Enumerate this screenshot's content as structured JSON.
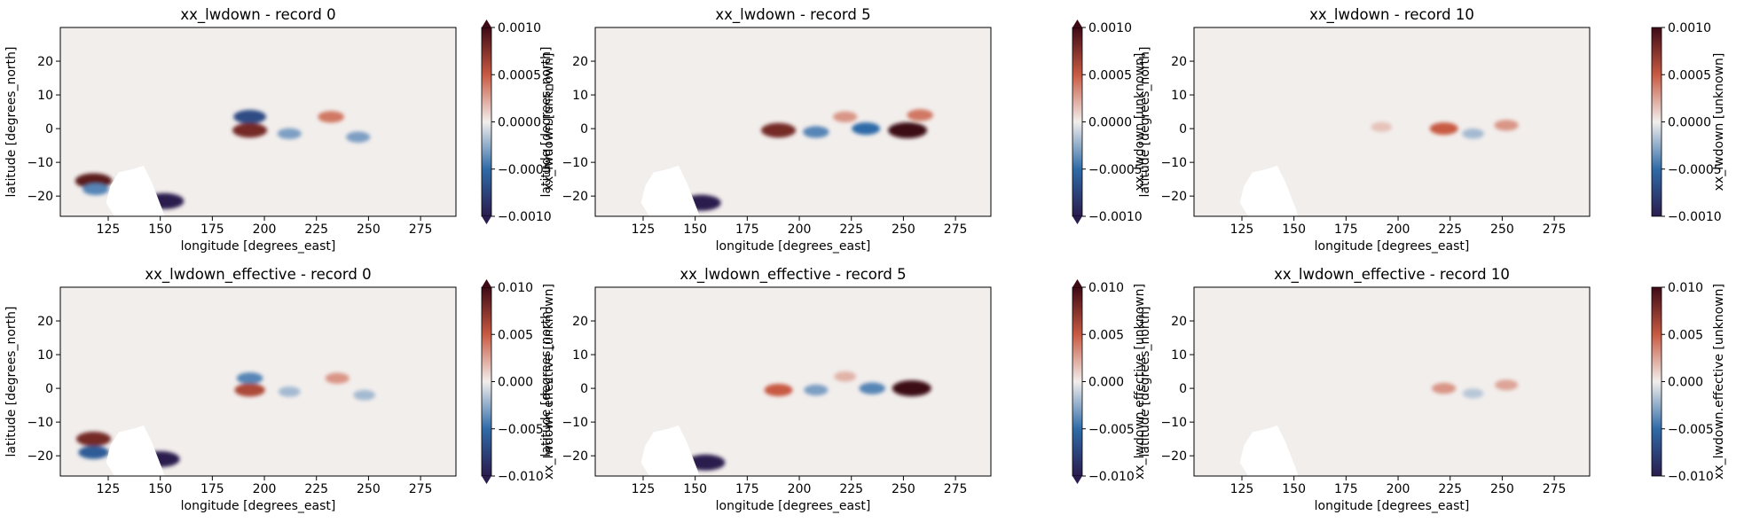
{
  "chart_data": [
    {
      "type": "heatmap",
      "title": "xx_lwdown - record 0",
      "xlabel": "longitude [degrees_east]",
      "ylabel": "latitude [degrees_north]",
      "xlim": [
        102,
        292
      ],
      "ylim": [
        -26,
        30
      ],
      "xticks": [
        125,
        150,
        175,
        200,
        225,
        250,
        275
      ],
      "yticks": [
        -20,
        -10,
        0,
        10,
        20
      ],
      "colorbar": {
        "label": "xx_lwdown [unknown]",
        "range": [
          -0.001,
          0.001
        ],
        "ticks": [
          "0.0010",
          "0.0005",
          "0.0000",
          "−0.0005",
          "−0.0010"
        ],
        "extend": "both"
      },
      "cmap": "balance",
      "features": [
        {
          "lon": 193,
          "lat": 3.5,
          "value": -0.0007
        },
        {
          "lon": 193,
          "lat": -0.5,
          "value": 0.0008
        },
        {
          "lon": 212,
          "lat": -1.5,
          "value": -0.0003
        },
        {
          "lon": 232,
          "lat": 3.5,
          "value": 0.0004
        },
        {
          "lon": 245,
          "lat": -2.5,
          "value": -0.0003
        },
        {
          "lon": 118,
          "lat": -15.5,
          "value": 0.0009
        },
        {
          "lon": 119,
          "lat": -18,
          "value": -0.0004
        },
        {
          "lon": 152,
          "lat": -21.5,
          "value": -0.001
        }
      ]
    },
    {
      "type": "heatmap",
      "title": "xx_lwdown - record 5",
      "xlabel": "longitude [degrees_east]",
      "ylabel": "latitude [degrees_north]",
      "xlim": [
        102,
        292
      ],
      "ylim": [
        -26,
        30
      ],
      "xticks": [
        125,
        150,
        175,
        200,
        225,
        250,
        275
      ],
      "yticks": [
        -20,
        -10,
        0,
        10,
        20
      ],
      "colorbar": {
        "label": "xx_lwdown [unknown]",
        "range": [
          -0.001,
          0.001
        ],
        "ticks": [
          "0.0010",
          "0.0005",
          "0.0000",
          "−0.0005",
          "−0.0010"
        ],
        "extend": "both"
      },
      "cmap": "balance",
      "features": [
        {
          "lon": 190,
          "lat": -0.5,
          "value": 0.0008
        },
        {
          "lon": 208,
          "lat": -1,
          "value": -0.0004
        },
        {
          "lon": 222,
          "lat": 3.5,
          "value": 0.0003
        },
        {
          "lon": 232,
          "lat": 0,
          "value": -0.0005
        },
        {
          "lon": 252,
          "lat": -0.5,
          "value": 0.001
        },
        {
          "lon": 258,
          "lat": 4,
          "value": 0.0004
        },
        {
          "lon": 153,
          "lat": -22,
          "value": -0.001
        }
      ]
    },
    {
      "type": "heatmap",
      "title": "xx_lwdown - record 10",
      "xlabel": "longitude [degrees_east]",
      "ylabel": "latitude [degrees_north]",
      "xlim": [
        102,
        292
      ],
      "ylim": [
        -26,
        30
      ],
      "xticks": [
        125,
        150,
        175,
        200,
        225,
        250,
        275
      ],
      "yticks": [
        -20,
        -10,
        0,
        10,
        20
      ],
      "colorbar": {
        "label": "xx_lwdown [unknown]",
        "range": [
          -0.001,
          0.001
        ],
        "ticks": [
          "0.0010",
          "0.0005",
          "0.0000",
          "−0.0005",
          "−0.0010"
        ],
        "extend": "neither"
      },
      "cmap": "balance",
      "features": [
        {
          "lon": 222,
          "lat": 0,
          "value": 0.0005
        },
        {
          "lon": 252,
          "lat": 1,
          "value": 0.0003
        },
        {
          "lon": 192,
          "lat": 0.5,
          "value": 0.00015
        },
        {
          "lon": 236,
          "lat": -1.5,
          "value": -0.0002
        }
      ]
    },
    {
      "type": "heatmap",
      "title": "xx_lwdown_effective - record 0",
      "xlabel": "longitude [degrees_east]",
      "ylabel": "latitude [degrees_north]",
      "xlim": [
        102,
        292
      ],
      "ylim": [
        -26,
        30
      ],
      "xticks": [
        125,
        150,
        175,
        200,
        225,
        250,
        275
      ],
      "yticks": [
        -20,
        -10,
        0,
        10,
        20
      ],
      "colorbar": {
        "label": "xx_lwdown.effective [unknown]",
        "range": [
          -0.01,
          0.01
        ],
        "ticks": [
          "0.010",
          "0.005",
          "0.000",
          "−0.005",
          "−0.010"
        ],
        "extend": "both"
      },
      "cmap": "balance",
      "features": [
        {
          "lon": 193,
          "lat": 3,
          "value": -0.004
        },
        {
          "lon": 193,
          "lat": -0.5,
          "value": 0.006
        },
        {
          "lon": 212,
          "lat": -1,
          "value": -0.002
        },
        {
          "lon": 235,
          "lat": 3,
          "value": 0.003
        },
        {
          "lon": 248,
          "lat": -2,
          "value": -0.002
        },
        {
          "lon": 118,
          "lat": -15,
          "value": 0.008
        },
        {
          "lon": 118,
          "lat": -19,
          "value": -0.006
        },
        {
          "lon": 150,
          "lat": -21,
          "value": -0.01
        }
      ]
    },
    {
      "type": "heatmap",
      "title": "xx_lwdown_effective - record 5",
      "xlabel": "longitude [degrees_east]",
      "ylabel": "latitude [degrees_north]",
      "xlim": [
        102,
        292
      ],
      "ylim": [
        -26,
        30
      ],
      "xticks": [
        125,
        150,
        175,
        200,
        225,
        250,
        275
      ],
      "yticks": [
        -20,
        -10,
        0,
        10,
        20
      ],
      "colorbar": {
        "label": "xx_lwdown.effective [unknown]",
        "range": [
          -0.01,
          0.01
        ],
        "ticks": [
          "0.010",
          "0.005",
          "0.000",
          "−0.005",
          "−0.010"
        ],
        "extend": "both"
      },
      "cmap": "balance",
      "features": [
        {
          "lon": 190,
          "lat": -0.5,
          "value": 0.005
        },
        {
          "lon": 208,
          "lat": -0.5,
          "value": -0.003
        },
        {
          "lon": 222,
          "lat": 3.5,
          "value": 0.002
        },
        {
          "lon": 235,
          "lat": 0,
          "value": -0.004
        },
        {
          "lon": 254,
          "lat": 0,
          "value": 0.01
        },
        {
          "lon": 155,
          "lat": -22,
          "value": -0.01
        }
      ]
    },
    {
      "type": "heatmap",
      "title": "xx_lwdown_effective - record 10",
      "xlabel": "longitude [degrees_east]",
      "ylabel": "latitude [degrees_north]",
      "xlim": [
        102,
        292
      ],
      "ylim": [
        -26,
        30
      ],
      "xticks": [
        125,
        150,
        175,
        200,
        225,
        250,
        275
      ],
      "yticks": [
        -20,
        -10,
        0,
        10,
        20
      ],
      "colorbar": {
        "label": "xx_lwdown.effective [unknown]",
        "range": [
          -0.01,
          0.01
        ],
        "ticks": [
          "0.010",
          "0.005",
          "0.000",
          "−0.005",
          "−0.010"
        ],
        "extend": "neither"
      },
      "cmap": "balance",
      "features": [
        {
          "lon": 222,
          "lat": 0,
          "value": 0.003
        },
        {
          "lon": 252,
          "lat": 1,
          "value": 0.0025
        },
        {
          "lon": 236,
          "lat": -1.5,
          "value": -0.0015
        }
      ]
    }
  ],
  "colors": {
    "neg_max": "#2a1c4e",
    "neg_mid": "#2f6ba8",
    "near_zero": "#f2eeec",
    "pos_mid": "#c85a42",
    "pos_max": "#3e0a16",
    "land_mask": "#ffffff"
  }
}
